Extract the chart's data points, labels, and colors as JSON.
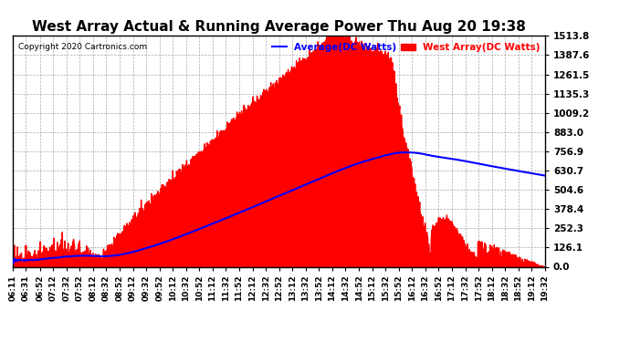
{
  "title": "West Array Actual & Running Average Power Thu Aug 20 19:38",
  "copyright": "Copyright 2020 Cartronics.com",
  "legend_avg": "Average(DC Watts)",
  "legend_west": "West Array(DC Watts)",
  "yticks": [
    0.0,
    126.1,
    252.3,
    378.4,
    504.6,
    630.7,
    756.9,
    883.0,
    1009.2,
    1135.3,
    1261.5,
    1387.6,
    1513.8
  ],
  "ymax": 1513.8,
  "ymin": 0.0,
  "xtick_labels": [
    "06:11",
    "06:31",
    "06:52",
    "07:12",
    "07:32",
    "07:52",
    "08:12",
    "08:32",
    "08:52",
    "09:12",
    "09:32",
    "09:52",
    "10:12",
    "10:32",
    "10:52",
    "11:12",
    "11:32",
    "11:52",
    "12:12",
    "12:32",
    "12:52",
    "13:12",
    "13:32",
    "13:52",
    "14:12",
    "14:32",
    "14:52",
    "15:12",
    "15:32",
    "15:52",
    "16:12",
    "16:32",
    "16:52",
    "17:12",
    "17:32",
    "17:52",
    "18:12",
    "18:32",
    "18:52",
    "19:12",
    "19:32"
  ]
}
